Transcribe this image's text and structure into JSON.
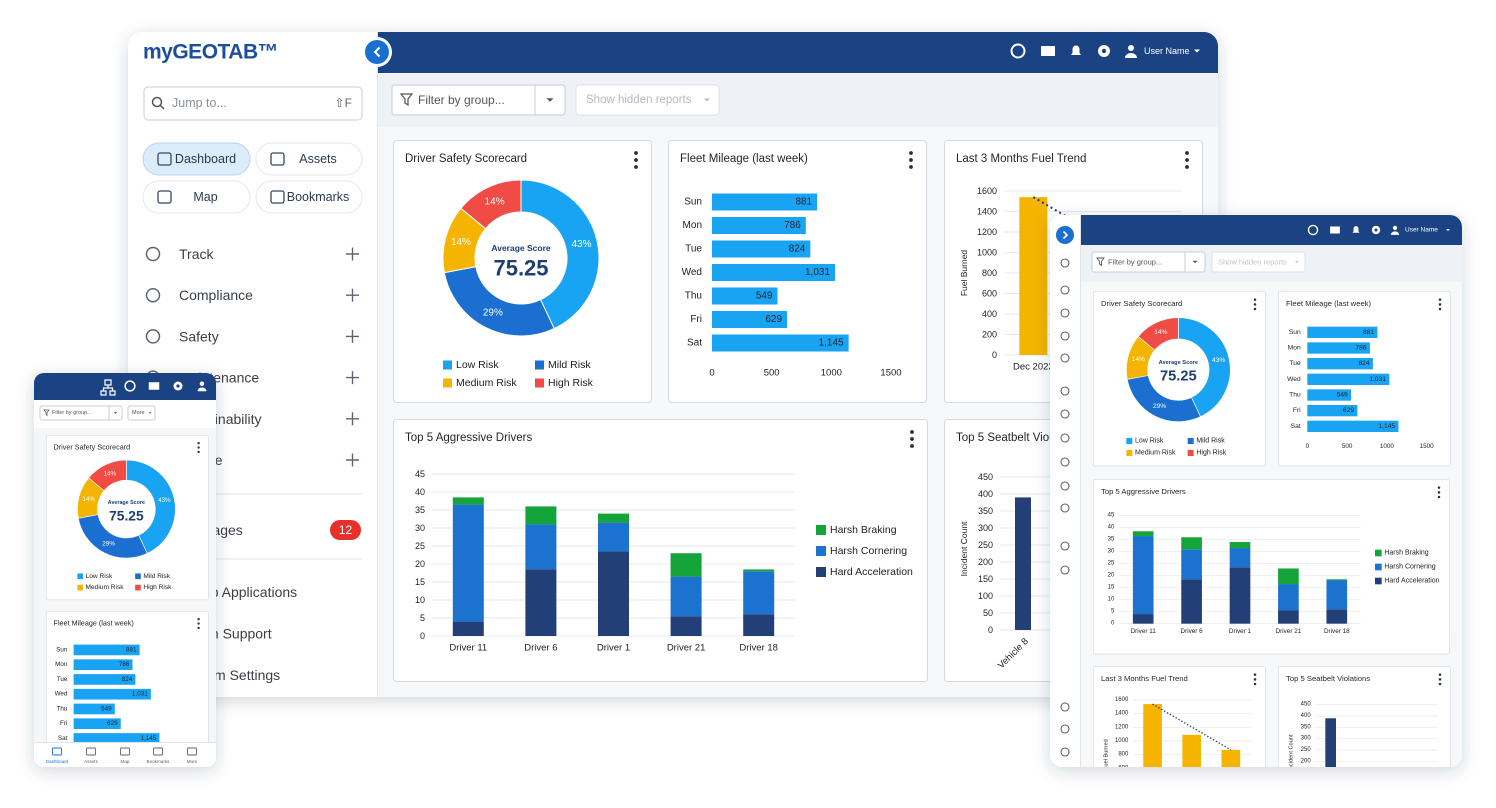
{
  "brand": "myGEOTAB™",
  "search": {
    "placeholder": "Jump to...",
    "shortcut": "⇧F"
  },
  "quick_nav": [
    "Dashboard",
    "Assets",
    "Map",
    "Bookmarks"
  ],
  "menu": [
    "Track",
    "Compliance",
    "Safety",
    "Maintenance",
    "Sustainability",
    "People"
  ],
  "messages": {
    "label": "Messages",
    "count": 12
  },
  "menu_bottom": [
    "Web Applications",
    "Admin Support",
    "System Settings"
  ],
  "user": "User Name",
  "filter": "Filter by group...",
  "hidden_reports": "Show hidden reports",
  "phone_more": "More",
  "chart_data": [
    {
      "type": "pie",
      "title": "Driver Safety Scorecard",
      "center_label": "Average Score",
      "center_value": 75.25,
      "categories": [
        "Low Risk",
        "Mild Risk",
        "Medium Risk",
        "High Risk"
      ],
      "values": [
        43,
        29,
        14,
        14
      ],
      "value_labels": [
        "43%",
        "29%",
        "14%",
        "14%"
      ],
      "colors": [
        "#18a4f2",
        "#1b6fd1",
        "#f4b400",
        "#f04b45"
      ]
    },
    {
      "type": "bar",
      "orientation": "horizontal",
      "title": "Fleet Mileage (last week)",
      "categories": [
        "Sun",
        "Mon",
        "Tue",
        "Wed",
        "Thu",
        "Fri",
        "Sat"
      ],
      "values": [
        881,
        786,
        824,
        1031,
        549,
        629,
        1145
      ],
      "value_labels": [
        "881",
        "786",
        "824",
        "1,031",
        "549",
        "629",
        "1,145"
      ],
      "color": "#18a4f2",
      "xlim": [
        0,
        1500
      ],
      "xticks": [
        0,
        500,
        1000,
        1500
      ],
      "grid": false
    },
    {
      "type": "bar",
      "title": "Last 3 Months Fuel Trend",
      "y_label": "Fuel Burned",
      "categories": [
        "Dec 2022",
        null,
        null
      ],
      "values": [
        1540,
        1090,
        870
      ],
      "color": "#f4b400",
      "trendline": true,
      "ylim": [
        0,
        1600
      ],
      "yticks": [
        0,
        200,
        400,
        600,
        800,
        1000,
        1200,
        1400,
        1600
      ],
      "grid": true
    },
    {
      "type": "bar",
      "title": "Top 5 Aggressive Drivers",
      "categories": [
        "Driver 11",
        "Driver 6",
        "Driver 1",
        "Driver 21",
        "Driver 18"
      ],
      "series": [
        {
          "name": "Harsh Braking",
          "color": "#14a43a",
          "values": [
            2,
            5,
            2.5,
            6.5,
            0.5
          ]
        },
        {
          "name": "Harsh Cornering",
          "color": "#1b72cf",
          "values": [
            32.5,
            12.5,
            8,
            11,
            12
          ]
        },
        {
          "name": "Hard Acceleration",
          "color": "#233f78",
          "values": [
            4,
            18.5,
            23.5,
            5.5,
            6
          ]
        }
      ],
      "ylim": [
        0,
        45
      ],
      "yticks": [
        0,
        5,
        10,
        15,
        20,
        25,
        30,
        35,
        40,
        45
      ],
      "grid": true
    },
    {
      "type": "bar",
      "title": "Top 5 Seatbelt Violations",
      "y_label": "Incident Count",
      "categories": [
        "Vehicle 8"
      ],
      "values": [
        390
      ],
      "color": "#233f78",
      "ylim": [
        0,
        450
      ],
      "yticks": [
        0,
        50,
        100,
        150,
        200,
        250,
        300,
        350,
        400,
        450
      ],
      "grid": true
    }
  ]
}
